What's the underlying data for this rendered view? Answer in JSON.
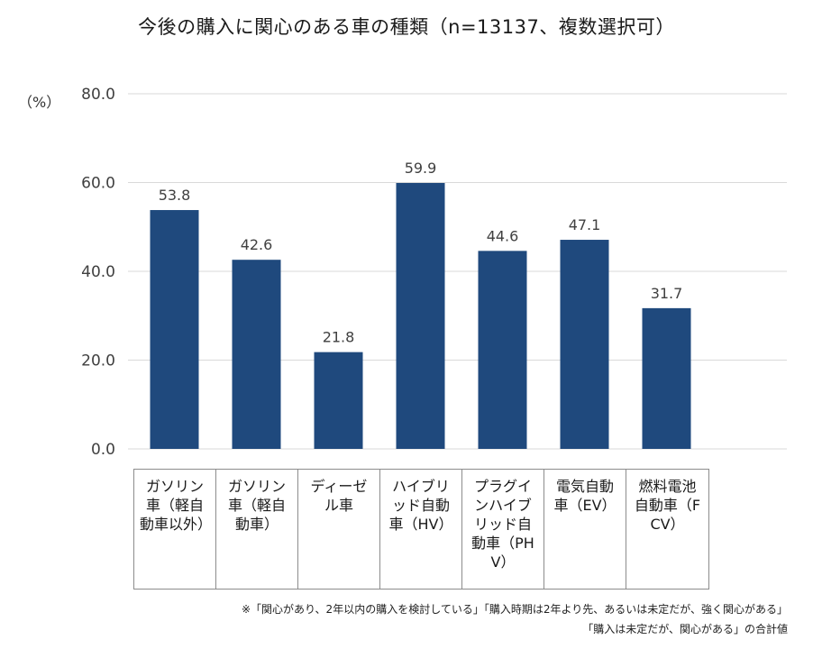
{
  "title": "今後の購入に関心のある車の種類（n=13137、複数選択可）",
  "unit": "（%）",
  "footnote_line1": "※「関心があり、2年以内の購入を検討している」「購入時期は2年より先、あるいは未定だが、強く関心がある」",
  "footnote_line2": "「購入は未定だが、関心がある」の合計値",
  "colors": {
    "bar": "#1f497d",
    "grid": "#d9d9d9",
    "axis_text": "#404040"
  },
  "chart_data": {
    "type": "bar",
    "title": "今後の購入に関心のある車の種類（n=13137、複数選択可）",
    "ylabel": "（%）",
    "xlabel": "",
    "ylim": [
      0,
      80
    ],
    "yticks": [
      0,
      20,
      40,
      60,
      80
    ],
    "ytick_labels": [
      "0.0",
      "20.0",
      "40.0",
      "60.0",
      "80.0"
    ],
    "grid": true,
    "categories": [
      "ガソリン車（軽自動車以外）",
      "ガソリン車（軽自動車）",
      "ディーゼル車",
      "ハイブリッド自動車（HV）",
      "プラグインハイブリッド自動車（PHV）",
      "電気自動車（EV）",
      "燃料電池自動車（FCV）"
    ],
    "values": [
      53.8,
      42.6,
      21.8,
      59.9,
      44.6,
      47.1,
      31.7
    ],
    "value_labels": [
      "53.8",
      "42.6",
      "21.8",
      "59.9",
      "44.6",
      "47.1",
      "31.7"
    ]
  }
}
